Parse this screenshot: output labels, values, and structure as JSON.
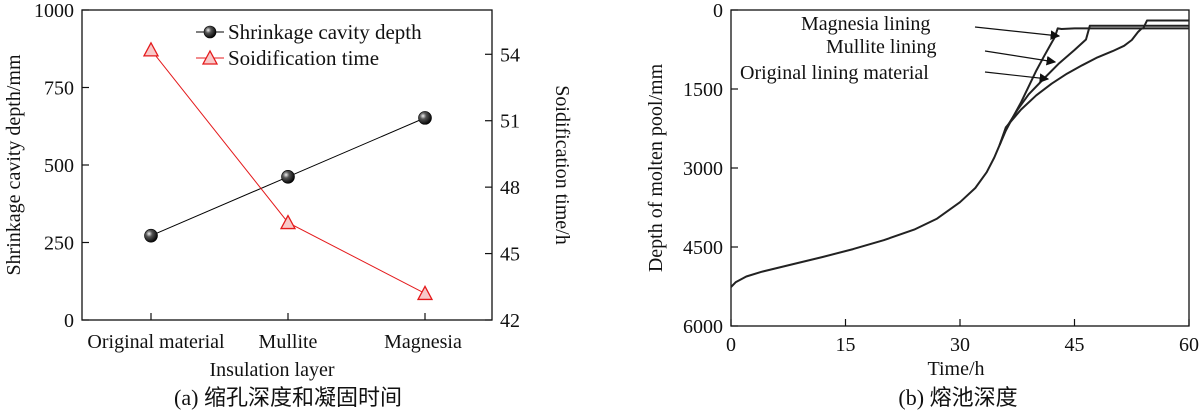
{
  "chart_data": [
    {
      "type": "line",
      "caption": "(a) 缩孔深度和凝固时间",
      "xlabel": "Insulation layer",
      "ylabel": "Shrinkage cavity depth/mm",
      "y2label": "Soidification time/h",
      "categories": [
        "Original material",
        "Mullite",
        "Magnesia"
      ],
      "ylim": [
        0,
        1000
      ],
      "yticks": [
        "0",
        "250",
        "500",
        "750",
        "1000"
      ],
      "y2lim": [
        42,
        56
      ],
      "y2ticks": [
        "42",
        "45",
        "48",
        "51",
        "54"
      ],
      "legend_position": "top-right",
      "series": [
        {
          "name": "Shrinkage cavity depth",
          "axis": "left",
          "color": "#000000",
          "marker": "sphere",
          "values": [
            272,
            462,
            652
          ]
        },
        {
          "name": "Soidification time",
          "axis": "right",
          "color": "#e41a1c",
          "marker": "triangle",
          "values": [
            54.2,
            46.4,
            43.2
          ]
        }
      ]
    },
    {
      "type": "line",
      "caption": "(b) 熔池深度",
      "xlabel": "Time/h",
      "ylabel": "Depth of molten pool/mm",
      "xlim": [
        0,
        60
      ],
      "xticks": [
        "0",
        "15",
        "30",
        "45",
        "60"
      ],
      "ylim": [
        0,
        6000
      ],
      "y_inverted": true,
      "yticks": [
        "0",
        "1500",
        "3000",
        "4500",
        "6000"
      ],
      "series": [
        {
          "name": "Magnesia lining",
          "color": "#222222",
          "points": [
            [
              0,
              5260
            ],
            [
              0.6,
              5170
            ],
            [
              2,
              5060
            ],
            [
              4,
              4970
            ],
            [
              8,
              4830
            ],
            [
              12,
              4690
            ],
            [
              16,
              4540
            ],
            [
              20,
              4370
            ],
            [
              24,
              4170
            ],
            [
              27,
              3960
            ],
            [
              30,
              3650
            ],
            [
              32,
              3380
            ],
            [
              33.5,
              3080
            ],
            [
              34.5,
              2800
            ],
            [
              35.2,
              2560
            ],
            [
              36,
              2290
            ],
            [
              37,
              2020
            ],
            [
              38,
              1750
            ],
            [
              39,
              1450
            ],
            [
              40,
              1150
            ],
            [
              41,
              880
            ],
            [
              42,
              620
            ],
            [
              42.4,
              520
            ],
            [
              42.8,
              350
            ],
            [
              43.3,
              360
            ],
            [
              45,
              350
            ],
            [
              47,
              350
            ],
            [
              50,
              350
            ],
            [
              54,
              350
            ],
            [
              54.5,
              200
            ],
            [
              55,
              200
            ],
            [
              60,
              200
            ]
          ]
        },
        {
          "name": "Mullite lining",
          "color": "#222222",
          "points": [
            [
              35.2,
              2560
            ],
            [
              36,
              2250
            ],
            [
              37.5,
              1900
            ],
            [
              39,
              1600
            ],
            [
              41,
              1300
            ],
            [
              43,
              1010
            ],
            [
              45,
              760
            ],
            [
              46.5,
              560
            ],
            [
              47,
              300
            ],
            [
              47.5,
              300
            ],
            [
              50,
              300
            ],
            [
              54,
              300
            ],
            [
              60,
              300
            ]
          ]
        },
        {
          "name": "Original lining material",
          "color": "#222222",
          "points": [
            [
              35.2,
              2560
            ],
            [
              36,
              2230
            ],
            [
              38,
              1890
            ],
            [
              40,
              1620
            ],
            [
              42,
              1400
            ],
            [
              44,
              1210
            ],
            [
              46,
              1050
            ],
            [
              48,
              900
            ],
            [
              50,
              780
            ],
            [
              51.5,
              680
            ],
            [
              52.5,
              570
            ],
            [
              53.3,
              420
            ],
            [
              53.8,
              350
            ],
            [
              54,
              350
            ],
            [
              60,
              350
            ]
          ]
        }
      ]
    }
  ]
}
